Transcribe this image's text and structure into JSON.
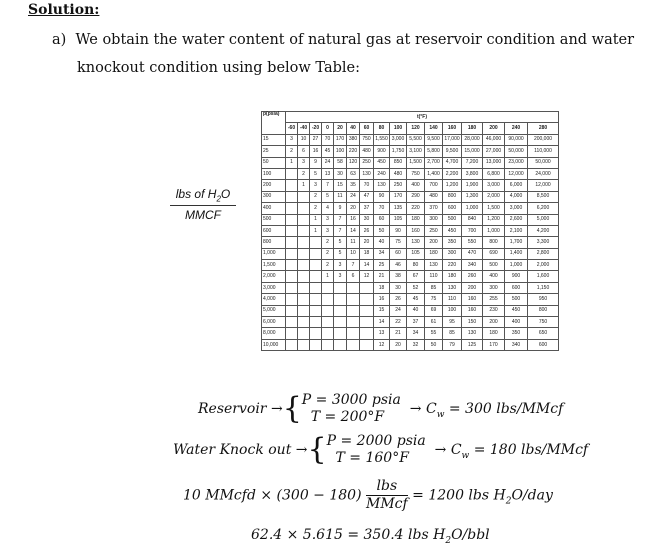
{
  "heading": "Solution:",
  "paragraph": {
    "marker": "a)",
    "line1": "We obtain the water content of natural gas at reservoir condition and water",
    "line2": "knockout condition using below Table:"
  },
  "table": {
    "y_label_top": "lbs of H",
    "y_label_sub": "2",
    "y_label_end": "O",
    "y_label_bottom": "MMCF",
    "pressure_header": "p(psia)",
    "temp_header": "t(°F)",
    "temperatures": [
      "-60",
      "-40",
      "-20",
      "0",
      "20",
      "40",
      "60",
      "80",
      "100",
      "120",
      "140",
      "160",
      "180",
      "200",
      "240",
      "280"
    ],
    "rows": [
      {
        "p": "15",
        "v": [
          "3",
          "10",
          "27",
          "70",
          "170",
          "380",
          "750",
          "1,550",
          "3,000",
          "5,500",
          "9,500",
          "17,000",
          "28,000",
          "46,000",
          "90,000",
          "200,000"
        ]
      },
      {
        "p": "25",
        "v": [
          "2",
          "6",
          "16",
          "45",
          "100",
          "220",
          "480",
          "900",
          "1,750",
          "3,100",
          "5,800",
          "9,500",
          "15,000",
          "27,000",
          "50,000",
          "110,000"
        ]
      },
      {
        "p": "50",
        "v": [
          "1",
          "3",
          "9",
          "24",
          "58",
          "120",
          "250",
          "450",
          "850",
          "1,500",
          "2,700",
          "4,700",
          "7,200",
          "13,000",
          "23,000",
          "50,000"
        ]
      },
      {
        "p": "100",
        "v": [
          "",
          "2",
          "5",
          "13",
          "30",
          "63",
          "130",
          "240",
          "480",
          "750",
          "1,400",
          "2,200",
          "3,800",
          "6,800",
          "12,000",
          "24,000"
        ]
      },
      {
        "p": "200",
        "v": [
          "",
          "1",
          "3",
          "7",
          "15",
          "35",
          "70",
          "130",
          "250",
          "400",
          "700",
          "1,200",
          "1,900",
          "3,000",
          "6,000",
          "12,000"
        ]
      },
      {
        "p": "300",
        "v": [
          "",
          "",
          "2",
          "5",
          "11",
          "24",
          "47",
          "90",
          "170",
          "290",
          "480",
          "800",
          "1,300",
          "2,000",
          "4,000",
          "8,500"
        ]
      },
      {
        "p": "400",
        "v": [
          "",
          "",
          "2",
          "4",
          "9",
          "20",
          "37",
          "70",
          "135",
          "220",
          "370",
          "600",
          "1,000",
          "1,500",
          "3,000",
          "6,200"
        ]
      },
      {
        "p": "500",
        "v": [
          "",
          "",
          "1",
          "3",
          "7",
          "16",
          "30",
          "60",
          "105",
          "180",
          "300",
          "500",
          "840",
          "1,200",
          "2,600",
          "5,000"
        ]
      },
      {
        "p": "600",
        "v": [
          "",
          "",
          "1",
          "3",
          "7",
          "14",
          "26",
          "50",
          "90",
          "160",
          "250",
          "450",
          "700",
          "1,000",
          "2,100",
          "4,200"
        ]
      },
      {
        "p": "800",
        "v": [
          "",
          "",
          "",
          "2",
          "5",
          "11",
          "20",
          "40",
          "75",
          "130",
          "200",
          "350",
          "550",
          "800",
          "1,700",
          "3,300"
        ]
      },
      {
        "p": "1,000",
        "v": [
          "",
          "",
          "",
          "2",
          "5",
          "10",
          "18",
          "34",
          "60",
          "105",
          "180",
          "300",
          "470",
          "690",
          "1,400",
          "2,800"
        ]
      },
      {
        "p": "1,500",
        "v": [
          "",
          "",
          "",
          "2",
          "3",
          "7",
          "14",
          "25",
          "46",
          "80",
          "130",
          "220",
          "340",
          "500",
          "1,000",
          "2,000"
        ]
      },
      {
        "p": "2,000",
        "v": [
          "",
          "",
          "",
          "1",
          "3",
          "6",
          "12",
          "21",
          "38",
          "67",
          "110",
          "180",
          "260",
          "400",
          "900",
          "1,600"
        ]
      },
      {
        "p": "3,000",
        "v": [
          "",
          "",
          "",
          "",
          "",
          "",
          "",
          "18",
          "30",
          "52",
          "85",
          "130",
          "200",
          "300",
          "600",
          "1,150"
        ]
      },
      {
        "p": "4,000",
        "v": [
          "",
          "",
          "",
          "",
          "",
          "",
          "",
          "16",
          "26",
          "45",
          "75",
          "110",
          "160",
          "255",
          "500",
          "950"
        ]
      },
      {
        "p": "5,000",
        "v": [
          "",
          "",
          "",
          "",
          "",
          "",
          "",
          "15",
          "24",
          "40",
          "69",
          "100",
          "160",
          "230",
          "450",
          "800"
        ]
      },
      {
        "p": "6,000",
        "v": [
          "",
          "",
          "",
          "",
          "",
          "",
          "",
          "14",
          "22",
          "37",
          "61",
          "95",
          "150",
          "200",
          "400",
          "750"
        ]
      },
      {
        "p": "8,000",
        "v": [
          "",
          "",
          "",
          "",
          "",
          "",
          "",
          "13",
          "21",
          "34",
          "55",
          "85",
          "130",
          "180",
          "350",
          "650"
        ]
      },
      {
        "p": "10,000",
        "v": [
          "",
          "",
          "",
          "",
          "",
          "",
          "",
          "12",
          "20",
          "32",
          "50",
          "79",
          "125",
          "170",
          "340",
          "600"
        ]
      }
    ]
  },
  "equations": {
    "reservoir": {
      "label": "Reservoir",
      "arrow": "→",
      "p": "P = 3000 psia",
      "t": "T = 200°F",
      "result_arrow": "→",
      "cw": "C",
      "cw_sub": "w",
      "result": " = 300 lbs/MMcf"
    },
    "knockout": {
      "label": "Water Knock out",
      "arrow": "→",
      "p": "P = 2000 psia",
      "t": "T = 160°F",
      "result_arrow": "→",
      "cw": "C",
      "cw_sub": "w",
      "result": " = 180 lbs/MMcf"
    },
    "daily": {
      "lhs": "10 MMcfd × (300 − 180)",
      "num": "lbs",
      "den": "MMcf",
      "rhs": "= 1200 lbs H",
      "rhs_sub": "2",
      "rhs_end": "O/day"
    },
    "density": {
      "lhs": "62.4 × 5.615 = 350.4 lbs H",
      "sub": "2",
      "end": "O/bbl"
    }
  }
}
